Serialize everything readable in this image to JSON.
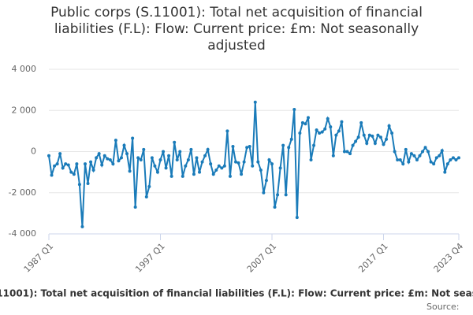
{
  "chart_data": {
    "type": "line",
    "title": "Public corps (S.11001): Total net acquisition of financial liabilities (F.L): Flow: Current price: £m: Not seasonally adjusted",
    "source": "Source:",
    "categories": [
      "1987 Q1",
      null,
      null,
      null,
      null,
      null,
      null,
      null,
      null,
      null,
      null,
      null,
      null,
      null,
      null,
      null,
      null,
      null,
      null,
      null,
      null,
      null,
      null,
      null,
      null,
      null,
      null,
      null,
      null,
      null,
      null,
      null,
      null,
      null,
      null,
      null,
      null,
      null,
      null,
      null,
      "1997 Q1",
      null,
      null,
      null,
      null,
      null,
      null,
      null,
      null,
      null,
      null,
      null,
      null,
      null,
      null,
      null,
      null,
      null,
      null,
      null,
      null,
      null,
      null,
      null,
      null,
      null,
      null,
      null,
      null,
      null,
      null,
      null,
      null,
      null,
      null,
      null,
      null,
      null,
      null,
      null,
      "2007 Q1",
      null,
      null,
      null,
      null,
      null,
      null,
      null,
      null,
      null,
      null,
      null,
      null,
      null,
      null,
      null,
      null,
      null,
      null,
      null,
      null,
      null,
      null,
      null,
      null,
      null,
      null,
      null,
      null,
      null,
      null,
      null,
      null,
      null,
      null,
      null,
      null,
      null,
      null,
      null,
      "2017 Q1",
      null,
      null,
      null,
      null,
      null,
      null,
      null,
      null,
      null,
      null,
      null,
      null,
      null,
      null,
      null,
      null,
      null,
      null,
      null,
      null,
      null,
      null,
      null,
      null,
      null,
      null,
      "2023 Q4"
    ],
    "series": [
      {
        "name": "Public corps (S.11001): Total net acquisition of financial liabilities (F.L): Flow: Current price: £m: Not seasonally adjusted",
        "color": "#1a7bb9",
        "values": [
          -200,
          -1150,
          -700,
          -600,
          -100,
          -800,
          -600,
          -650,
          -1000,
          -1100,
          -600,
          -1600,
          -3650,
          -600,
          -1550,
          -500,
          -900,
          -300,
          -100,
          -650,
          -200,
          -350,
          -400,
          -600,
          550,
          -450,
          -300,
          300,
          -100,
          -950,
          650,
          -2700,
          -300,
          -400,
          100,
          -2200,
          -1700,
          -300,
          -700,
          -1000,
          -400,
          0,
          -800,
          -200,
          -1200,
          450,
          -400,
          0,
          -1200,
          -700,
          -400,
          100,
          -1100,
          -300,
          -1000,
          -500,
          -200,
          100,
          -600,
          -1100,
          -900,
          -700,
          -800,
          -700,
          1000,
          -1200,
          250,
          -500,
          -550,
          -1100,
          -500,
          200,
          250,
          -700,
          2400,
          -500,
          -900,
          -2000,
          -1400,
          -400,
          -600,
          -2700,
          -2100,
          -800,
          300,
          -2100,
          200,
          600,
          2050,
          -3200,
          900,
          1400,
          1350,
          1650,
          -400,
          300,
          1050,
          900,
          950,
          1100,
          1600,
          1200,
          -200,
          800,
          1000,
          1450,
          0,
          0,
          -100,
          300,
          500,
          700,
          1400,
          800,
          400,
          800,
          750,
          400,
          800,
          700,
          350,
          600,
          1250,
          900,
          0,
          -400,
          -400,
          -600,
          100,
          -500,
          -100,
          -200,
          -400,
          -200,
          0,
          200,
          0,
          -500,
          -600,
          -300,
          -200,
          50,
          -1000,
          -600,
          -400,
          -300,
          -400,
          -300
        ]
      }
    ],
    "ylim": [
      -4000,
      4000
    ],
    "yticks": [
      {
        "value": -4000,
        "label": "-4 000"
      },
      {
        "value": -2000,
        "label": "-2 000"
      },
      0,
      {
        "value": 2000,
        "label": "2 000"
      },
      {
        "value": 4000,
        "label": "4 000"
      }
    ],
    "grid": true
  }
}
